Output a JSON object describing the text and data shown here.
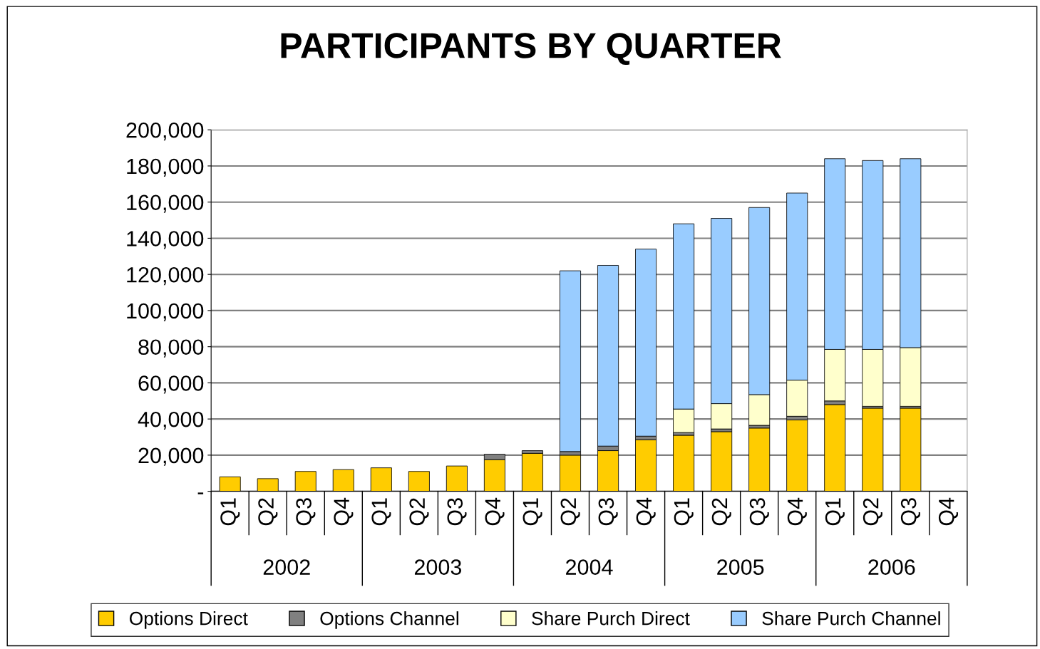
{
  "chart_data": {
    "type": "bar",
    "title": "PARTICIPANTS BY QUARTER",
    "stacked": true,
    "categories": [
      "Q1",
      "Q2",
      "Q3",
      "Q4",
      "Q1",
      "Q2",
      "Q3",
      "Q4",
      "Q1",
      "Q2",
      "Q3",
      "Q4",
      "Q1",
      "Q2",
      "Q3",
      "Q4",
      "Q1",
      "Q2",
      "Q3",
      "Q4"
    ],
    "annotations": [
      "2002",
      "2003",
      "2004",
      "2005",
      "2006"
    ],
    "series": [
      {
        "name": "Options Direct",
        "color": "#ffcc00",
        "values": [
          8000,
          7000,
          11000,
          12000,
          13000,
          11000,
          14000,
          17500,
          21000,
          20000,
          22500,
          28500,
          31000,
          33000,
          35000,
          39500,
          48000,
          46000,
          46000,
          null
        ]
      },
      {
        "name": "Options Channel",
        "color": "#808080",
        "values": [
          0,
          0,
          0,
          0,
          0,
          0,
          0,
          3000,
          1500,
          2000,
          2500,
          2000,
          1500,
          1500,
          1500,
          2000,
          2000,
          1000,
          1000,
          null
        ]
      },
      {
        "name": "Share Purch Direct",
        "color": "#ffffcc",
        "values": [
          0,
          0,
          0,
          0,
          0,
          0,
          0,
          0,
          0,
          0,
          0,
          0,
          13000,
          14000,
          17000,
          20000,
          28500,
          31500,
          32500,
          null
        ]
      },
      {
        "name": "Share Purch Channel",
        "color": "#99ccff",
        "values": [
          0,
          0,
          0,
          0,
          0,
          0,
          0,
          0,
          0,
          100000,
          100000,
          103500,
          102500,
          102500,
          103500,
          103500,
          105500,
          104500,
          104500,
          null
        ]
      }
    ],
    "ylim": [
      0,
      200000
    ],
    "yticks": [
      {
        "value": 0,
        "label": "-"
      },
      {
        "value": 20000,
        "label": "20,000"
      },
      {
        "value": 40000,
        "label": "40,000"
      },
      {
        "value": 60000,
        "label": "60,000"
      },
      {
        "value": 80000,
        "label": "80,000"
      },
      {
        "value": 100000,
        "label": "100,000"
      },
      {
        "value": 120000,
        "label": "120,000"
      },
      {
        "value": 140000,
        "label": "140,000"
      },
      {
        "value": 160000,
        "label": "160,000"
      },
      {
        "value": 180000,
        "label": "180,000"
      },
      {
        "value": 200000,
        "label": "200,000"
      }
    ],
    "grid": "y",
    "legend": "bottom"
  }
}
